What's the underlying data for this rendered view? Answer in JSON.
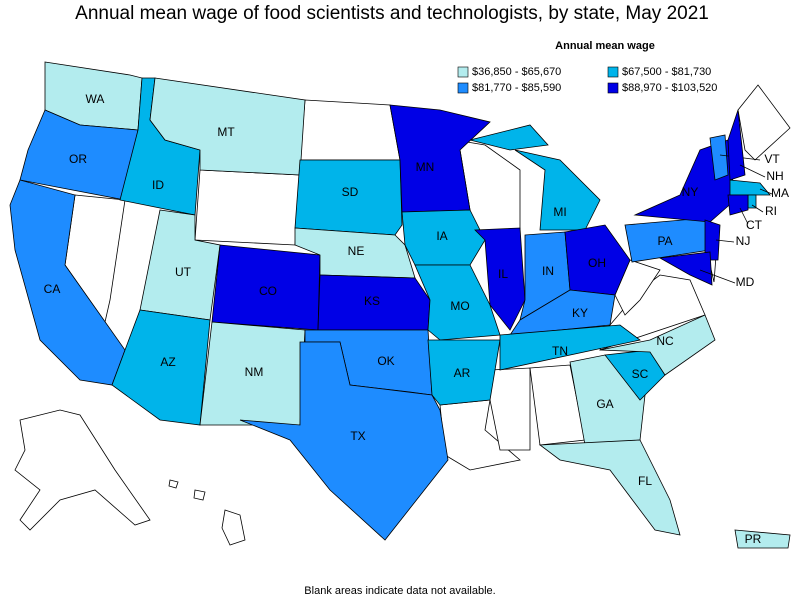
{
  "title": "Annual mean wage of food scientists and technologists, by state, May 2021",
  "legend": {
    "title": "Annual mean wage",
    "items": [
      {
        "label": "$36,850 - $65,670",
        "color": "#b3ecee"
      },
      {
        "label": "$67,500 - $81,730",
        "color": "#00b4ea"
      },
      {
        "label": "$81,770 - $85,590",
        "color": "#1e8cff"
      },
      {
        "label": "$88,970 - $103,520",
        "color": "#0000e6"
      }
    ]
  },
  "states": [
    {
      "label": "WA",
      "color": "#b3ecee"
    },
    {
      "label": "OR",
      "color": "#1e8cff"
    },
    {
      "label": "CA",
      "color": "#1e8cff"
    },
    {
      "label": "ID",
      "color": "#00b4ea"
    },
    {
      "label": "MT",
      "color": "#b3ecee"
    },
    {
      "label": "UT",
      "color": "#b3ecee"
    },
    {
      "label": "AZ",
      "color": "#00b4ea"
    },
    {
      "label": "CO",
      "color": "#0000e6"
    },
    {
      "label": "NM",
      "color": "#b3ecee"
    },
    {
      "label": "SD",
      "color": "#00b4ea"
    },
    {
      "label": "NE",
      "color": "#b3ecee"
    },
    {
      "label": "KS",
      "color": "#0000e6"
    },
    {
      "label": "OK",
      "color": "#1e8cff"
    },
    {
      "label": "TX",
      "color": "#1e8cff"
    },
    {
      "label": "MN",
      "color": "#0000e6"
    },
    {
      "label": "IA",
      "color": "#00b4ea"
    },
    {
      "label": "MO",
      "color": "#00b4ea"
    },
    {
      "label": "AR",
      "color": "#00b4ea"
    },
    {
      "label": "IL",
      "color": "#0000e6"
    },
    {
      "label": "MI",
      "color": "#00b4ea"
    },
    {
      "label": "IN",
      "color": "#1e8cff"
    },
    {
      "label": "OH",
      "color": "#0000e6"
    },
    {
      "label": "KY",
      "color": "#1e8cff"
    },
    {
      "label": "TN",
      "color": "#00b4ea"
    },
    {
      "label": "GA",
      "color": "#b3ecee"
    },
    {
      "label": "FL",
      "color": "#b3ecee"
    },
    {
      "label": "SC",
      "color": "#00b4ea"
    },
    {
      "label": "NC",
      "color": "#b3ecee"
    },
    {
      "label": "PA",
      "color": "#1e8cff"
    },
    {
      "label": "NY",
      "color": "#0000e6"
    },
    {
      "label": "VT",
      "color": "#1e8cff"
    },
    {
      "label": "NH",
      "color": "#0000e6"
    },
    {
      "label": "MA",
      "color": "#00b4ea"
    },
    {
      "label": "RI",
      "color": "#00b4ea"
    },
    {
      "label": "CT",
      "color": "#0000e6"
    },
    {
      "label": "NJ",
      "color": "#0000e6"
    },
    {
      "label": "MD",
      "color": "#0000e6"
    },
    {
      "label": "PR",
      "color": "#b3ecee"
    }
  ],
  "footnote": "Blank areas indicate data not available."
}
